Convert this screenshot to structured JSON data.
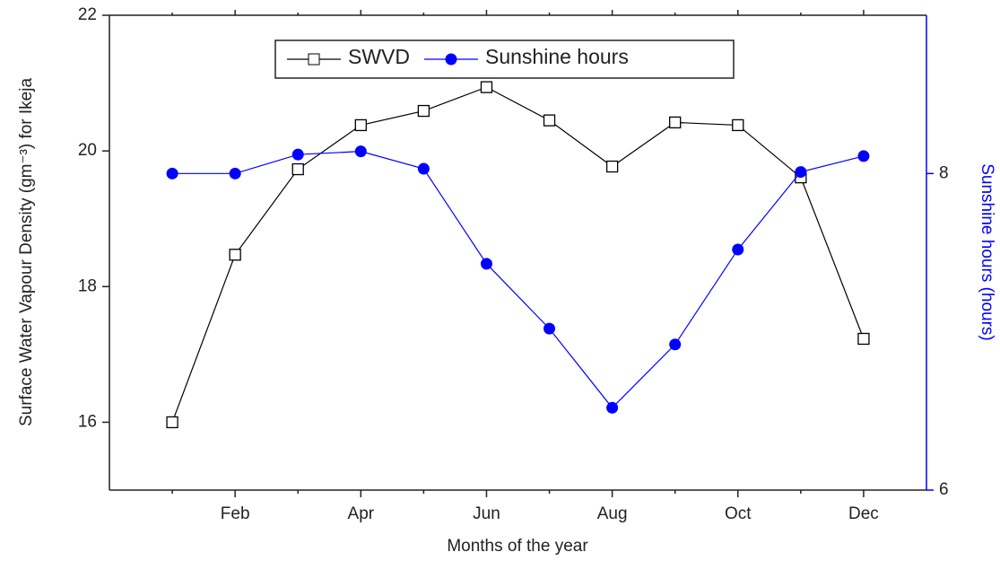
{
  "chart_data": {
    "type": "line",
    "x_label": "Months of the year",
    "y_label": "Surface Water Vapour Density (gm⁻³) for Ikeja",
    "y2_label": "Sunshine hours (hours)",
    "categories": [
      null,
      "Feb",
      null,
      "Apr",
      null,
      "Jun",
      null,
      "Aug",
      null,
      "Oct",
      null,
      "Dec"
    ],
    "series": [
      {
        "name": "SWVD",
        "color": "#000000",
        "marker": "open-square",
        "values": [
          16.0,
          18.47,
          19.73,
          20.38,
          20.59,
          20.94,
          20.45,
          19.77,
          20.42,
          20.38,
          19.61,
          17.23
        ]
      },
      {
        "name": "Sunshine hours",
        "color": "#0000ff",
        "marker": "filled-circle",
        "axis": "y2",
        "values": [
          8.0,
          8.0,
          8.12,
          8.14,
          8.03,
          7.43,
          7.02,
          6.52,
          6.92,
          7.52,
          8.01,
          8.11
        ]
      }
    ],
    "ylim": [
      15,
      22
    ],
    "yticks": [
      16,
      18,
      20,
      22
    ],
    "y2lim": [
      6,
      9
    ],
    "y2ticks": [
      6,
      8
    ],
    "grid": false,
    "legend": "top"
  }
}
